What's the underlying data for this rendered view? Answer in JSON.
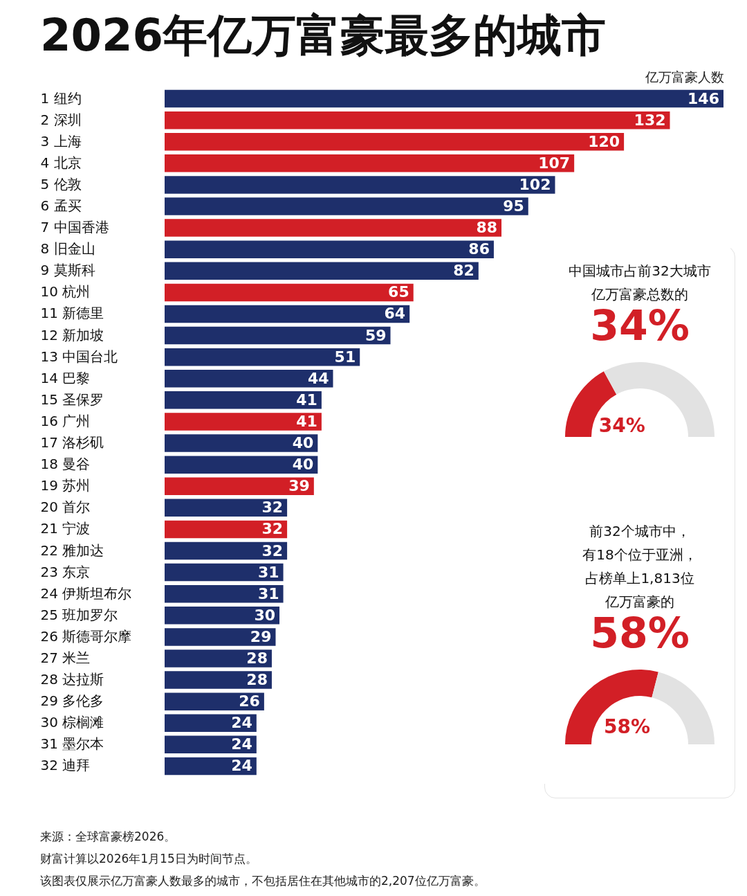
{
  "chart_data": [
    {
      "type": "bar",
      "orientation": "horizontal",
      "title": "2026年亿万富豪最多的城市",
      "xlabel": "亿万富豪人数",
      "categories": [
        "1  纽约",
        "2  深圳",
        "3  上海",
        "4  北京",
        "5  伦敦",
        "6  孟买",
        "7  中国香港",
        "8  旧金山",
        "9  莫斯科",
        "10  杭州",
        "11  新德里",
        "12  新加坡",
        "13  中国台北",
        "14  巴黎",
        "15  圣保罗",
        "16  广州",
        "17  洛杉矶",
        "18  曼谷",
        "19  苏州",
        "20  首尔",
        "21  宁波",
        "22  雅加达",
        "23  东京",
        "24  伊斯坦布尔",
        "25  班加罗尔",
        "26  斯德哥尔摩",
        "27  米兰",
        "28  达拉斯",
        "29  多伦多",
        "30  棕榈滩",
        "31  墨尔本",
        "32  迪拜"
      ],
      "values": [
        146,
        132,
        120,
        107,
        102,
        95,
        88,
        86,
        82,
        65,
        64,
        59,
        51,
        44,
        41,
        41,
        40,
        40,
        39,
        32,
        32,
        32,
        31,
        31,
        30,
        29,
        28,
        28,
        26,
        24,
        24,
        24
      ],
      "colors": [
        "#1e2f6b",
        "#d21f26",
        "#d21f26",
        "#d21f26",
        "#1e2f6b",
        "#1e2f6b",
        "#d21f26",
        "#1e2f6b",
        "#1e2f6b",
        "#d21f26",
        "#1e2f6b",
        "#1e2f6b",
        "#1e2f6b",
        "#1e2f6b",
        "#1e2f6b",
        "#d21f26",
        "#1e2f6b",
        "#1e2f6b",
        "#d21f26",
        "#1e2f6b",
        "#d21f26",
        "#1e2f6b",
        "#1e2f6b",
        "#1e2f6b",
        "#1e2f6b",
        "#1e2f6b",
        "#1e2f6b",
        "#1e2f6b",
        "#1e2f6b",
        "#1e2f6b",
        "#1e2f6b",
        "#1e2f6b"
      ],
      "data_labels": true,
      "annotations": [
        "来源：全球富豪榜2026。",
        "财富计算以2026年1月15日为时间节点。",
        "该图表仅展示亿万富豪人数最多的城市，不包括居住在其他城市的2,207位亿万富豪。"
      ]
    },
    {
      "type": "donut",
      "title": "中国城市占前32大城市亿万富豪总数的",
      "subtitle": "34%",
      "categories": [
        null,
        null
      ],
      "values": [
        34,
        66
      ],
      "colors": [
        "#d21f26",
        "#e2e2e2"
      ],
      "value_labels": [
        "34%",
        null
      ]
    },
    {
      "type": "donut",
      "title": "前32个城市中，有18个位于亚洲，占榜单上1,813位亿万富豪的",
      "subtitle": "58%",
      "categories": [
        null,
        null
      ],
      "values": [
        58,
        42
      ],
      "colors": [
        "#d21f26",
        "#e2e2e2"
      ],
      "value_labels": [
        "58%",
        null
      ]
    }
  ]
}
